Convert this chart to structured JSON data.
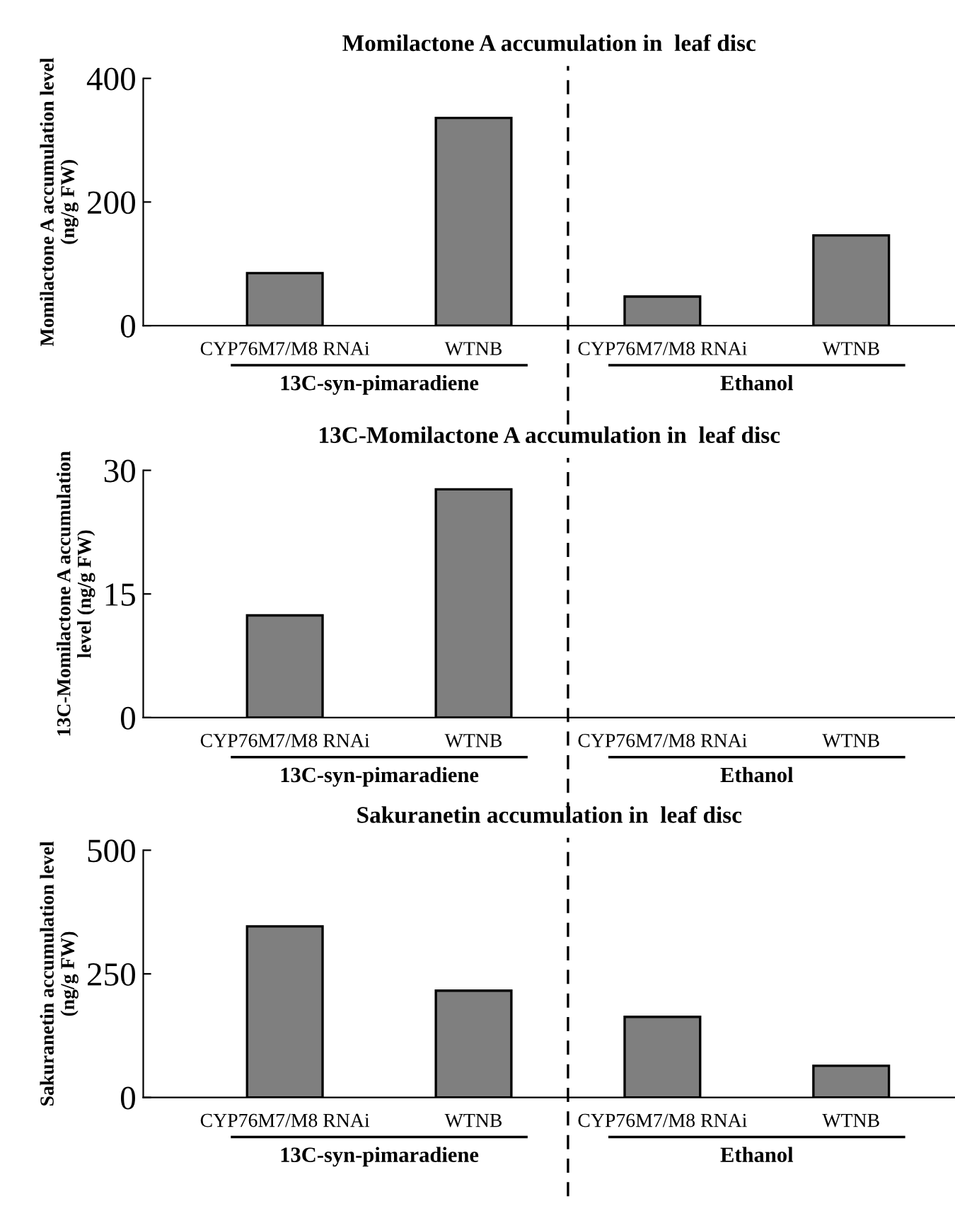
{
  "chart_data": [
    {
      "type": "bar",
      "title": "Momilactone A accumulation in  leaf disc",
      "ylabel": "Momilactone A accumulation level\n(ng/g FW)",
      "categories": [
        "CYP76M7/M8 RNAi",
        "WTNB",
        "CYP76M7/M8 RNAi",
        "WTNB"
      ],
      "values": [
        85,
        336,
        47,
        146
      ],
      "color": "#7f7f7f",
      "ylim": [
        0,
        400
      ],
      "yticks": [
        0,
        200,
        400
      ],
      "grid": false,
      "annotations": [
        "13C-syn-pimaradiene",
        "Ethanol"
      ]
    },
    {
      "type": "bar",
      "title": "13C-Momilactone A accumulation in  leaf disc",
      "ylabel": "13C-Momilactone A accumulation\nlevel (ng/g FW)",
      "categories": [
        "CYP76M7/M8 RNAi",
        "WTNB",
        "CYP76M7/M8 RNAi",
        "WTNB"
      ],
      "values": [
        12.4,
        27.7,
        0,
        0
      ],
      "color": "#7f7f7f",
      "ylim": [
        0,
        30
      ],
      "yticks": [
        0,
        15,
        30
      ],
      "grid": false,
      "annotations": [
        "13C-syn-pimaradiene",
        "Ethanol"
      ]
    },
    {
      "type": "bar",
      "title": "Sakuranetin accumulation in  leaf disc",
      "ylabel": "Sakuranetin accumulation level\n(ng/g FW)",
      "categories": [
        "CYP76M7/M8 RNAi",
        "WTNB",
        "CYP76M7/M8 RNAi",
        "WTNB"
      ],
      "values": [
        346,
        216,
        163,
        64
      ],
      "color": "#7f7f7f",
      "ylim": [
        0,
        500
      ],
      "yticks": [
        0,
        250,
        500
      ],
      "grid": false,
      "annotations": [
        "13C-syn-pimaradiene",
        "Ethanol"
      ]
    }
  ]
}
